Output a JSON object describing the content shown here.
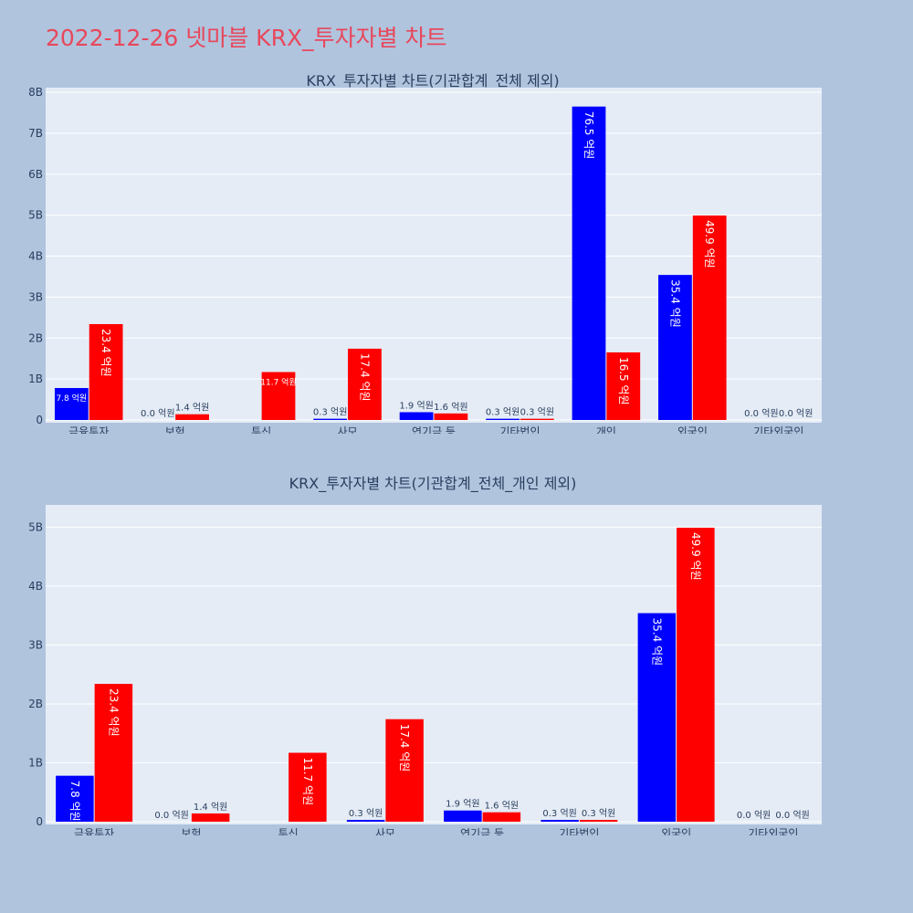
{
  "page": {
    "title": "2022-12-26 넷마블 KRX_투자자별 차트"
  },
  "colors": {
    "buy": "#0000ff",
    "sell": "#ff0000",
    "plot_bg": "#e5ecf6",
    "paper_bg": "#b0c4de",
    "title": "#e8475b"
  },
  "chart_data": [
    {
      "type": "bar",
      "title": "KRX_투자자별 차트(기관합계_전체 제외)",
      "categories": [
        "금융투자",
        "보험",
        "투신",
        "사모",
        "연기금 등",
        "기타법인",
        "개인",
        "외국인",
        "기타외국인"
      ],
      "ylim": [
        0,
        8
      ],
      "ytick_labels": [
        "0",
        "1B",
        "2B",
        "3B",
        "4B",
        "5B",
        "6B",
        "7B",
        "8B"
      ],
      "series": [
        {
          "color": "#0000ff",
          "values": [
            0.78,
            0.0,
            0.0,
            0.03,
            0.19,
            0.03,
            7.65,
            3.54,
            0.0
          ],
          "labels": [
            "7.8 억원",
            "0.0 억원",
            "",
            "0.3 억원",
            "1.9 억원",
            "0.3 억원",
            "76.5 억원",
            "35.4 억원",
            "0.0 억원"
          ]
        },
        {
          "color": "#ff0000",
          "values": [
            2.34,
            0.14,
            1.17,
            1.74,
            0.16,
            0.03,
            1.65,
            4.99,
            0.0
          ],
          "labels": [
            "23.4 억원",
            "1.4 억원",
            "11.7 억원",
            "17.4 억원",
            "1.6 억원",
            "0.3 억원",
            "16.5 억원",
            "49.9 억원",
            "0.0 억원"
          ]
        }
      ],
      "grid": true
    },
    {
      "type": "bar",
      "title": "KRX_투자자별 차트(기관합계_전체_개인 제외)",
      "categories": [
        "금융투자",
        "보험",
        "투신",
        "사모",
        "연기금 등",
        "기타법인",
        "외국인",
        "기타외국인"
      ],
      "ylim": [
        0,
        5.3
      ],
      "ytick_labels": [
        "0",
        "1B",
        "2B",
        "3B",
        "4B",
        "5B"
      ],
      "series": [
        {
          "color": "#0000ff",
          "values": [
            0.78,
            0.0,
            0.0,
            0.03,
            0.19,
            0.03,
            3.54,
            0.0
          ],
          "labels": [
            "7.8 억원",
            "0.0 억원",
            "",
            "0.3 억원",
            "1.9 억원",
            "0.3 억원",
            "35.4 억원",
            "0.0 억원"
          ]
        },
        {
          "color": "#ff0000",
          "values": [
            2.34,
            0.14,
            1.17,
            1.74,
            0.16,
            0.03,
            4.99,
            0.0
          ],
          "labels": [
            "23.4 억원",
            "1.4 억원",
            "11.7 억원",
            "17.4 억원",
            "1.6 억원",
            "0.3 억원",
            "49.9 억원",
            "0.0 억원"
          ]
        }
      ],
      "grid": true
    }
  ]
}
